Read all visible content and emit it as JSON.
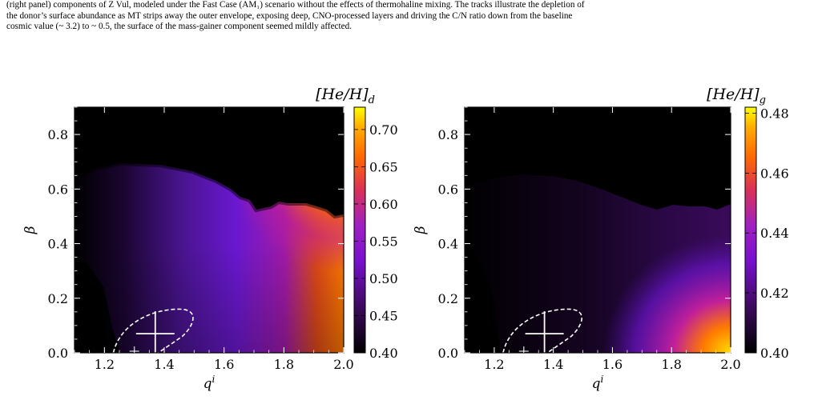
{
  "caption": {
    "line1": "(right panel) components of Z Vul, modeled under the Fast Case (AM₁) scenario without the effects of thermohaline mixing. The tracks illustrate the depletion of",
    "line2": "the donor’s surface abundance as MT strips away the outer envelope, exposing deep, CNO-processed layers and driving the C/N ratio down from the baseline",
    "line3": "cosmic value (~ 3.2) to ~ 0.5, the surface of the mass-gainer component seemed mildly affected."
  },
  "chart_data": [
    {
      "type": "heatmap",
      "panel": "left",
      "colorbar_label": "[He/H]_d",
      "xlabel": "q^i",
      "ylabel": "β",
      "xlim": [
        1.1,
        2.0
      ],
      "ylim": [
        0.0,
        0.9
      ],
      "xticks": [
        1.2,
        1.4,
        1.6,
        1.8,
        2.0
      ],
      "yticks": [
        0.0,
        0.2,
        0.4,
        0.6,
        0.8
      ],
      "colorbar_range": [
        0.4,
        0.73
      ],
      "colorbar_ticks": [
        0.4,
        0.45,
        0.5,
        0.55,
        0.6,
        0.65,
        0.7
      ],
      "colormap": "gnuplot",
      "marker": {
        "q": 1.37,
        "beta": 0.07,
        "symbol": "plus",
        "color": "#ffffff"
      },
      "contour": {
        "style": "dashed",
        "color": "#ffffff"
      }
    },
    {
      "type": "heatmap",
      "panel": "right",
      "colorbar_label": "[He/H]_g",
      "xlabel": "q^i",
      "ylabel": "β",
      "xlim": [
        1.1,
        2.0
      ],
      "ylim": [
        0.0,
        0.9
      ],
      "xticks": [
        1.2,
        1.4,
        1.6,
        1.8,
        2.0
      ],
      "yticks": [
        0.0,
        0.2,
        0.4,
        0.6,
        0.8
      ],
      "colorbar_range": [
        0.4,
        0.482
      ],
      "colorbar_ticks": [
        0.4,
        0.42,
        0.44,
        0.46,
        0.48
      ],
      "colormap": "gnuplot",
      "marker": {
        "q": 1.37,
        "beta": 0.07,
        "symbol": "plus",
        "color": "#ffffff"
      },
      "contour": {
        "style": "dashed",
        "color": "#ffffff"
      }
    }
  ]
}
